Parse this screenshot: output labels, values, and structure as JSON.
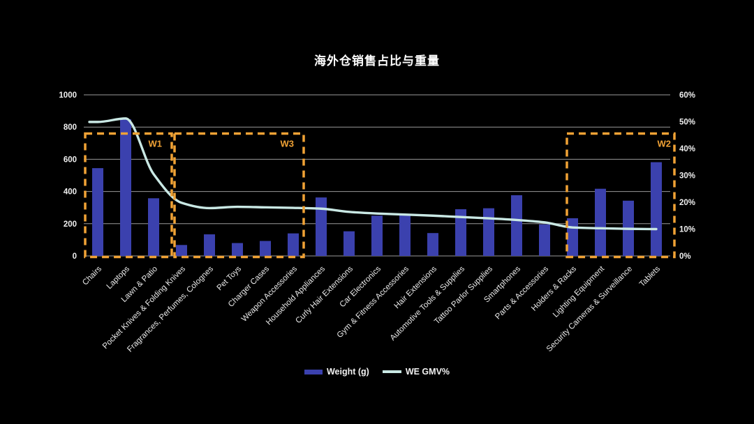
{
  "chart_data": {
    "type": "bar+line combo",
    "title": "海外仓销售占比与重量",
    "categories": [
      "Chairs",
      "Laptops",
      "Lawn & Patio",
      "Pocket Knives & Folding Knives",
      "Fragrances, Perfumes, Colognes",
      "Pet Toys",
      "Charger Cases",
      "Weapon Accessories",
      "Household Appliances",
      "Curly Hair Extensions",
      "Car Electronics",
      "Gym & Fitness Accessories",
      "Hair Extensions",
      "Automotive Tools & Supplies",
      "Tattoo Parlor Supplies",
      "Smartphones",
      "Parts & Accessories",
      "Holders & Racks",
      "Lighting Equipment",
      "Security Cameras & Surveillance",
      "Tablets"
    ],
    "series": [
      {
        "name": "Weight (g)",
        "type": "bar",
        "axis": "left",
        "color": "#3b41ae",
        "values": [
          545,
          848,
          358,
          68,
          134,
          80,
          93,
          140,
          363,
          153,
          250,
          256,
          142,
          290,
          296,
          377,
          196,
          234,
          417,
          343,
          582
        ]
      },
      {
        "name": "WE GMV%",
        "type": "line",
        "axis": "right",
        "color": "#c9e8e4",
        "values": [
          49.9,
          51.2,
          30.5,
          19.8,
          17.8,
          18.3,
          18.1,
          17.9,
          17.6,
          16.4,
          15.8,
          15.4,
          15.0,
          14.5,
          14.0,
          13.4,
          12.5,
          10.6,
          10.3,
          10.1,
          10.0
        ]
      }
    ],
    "left_axis": {
      "min": 0,
      "max": 1000,
      "step": 200
    },
    "right_axis": {
      "min": 0,
      "max": 60,
      "step": 10,
      "suffix": "%"
    },
    "annotations": [
      {
        "label": "W1",
        "from": 0,
        "to": 2,
        "top_value": 760
      },
      {
        "label": "W3",
        "from": 3,
        "to": 7,
        "top_value": 760
      },
      {
        "label": "W2",
        "from": 17,
        "to": 20,
        "top_value": 760
      }
    ],
    "colors": {
      "background": "#000000",
      "grid": "#9a9a9a",
      "axis_text": "#f0f0f0",
      "annotation": "#f0a235"
    },
    "legend_position": "bottom"
  }
}
